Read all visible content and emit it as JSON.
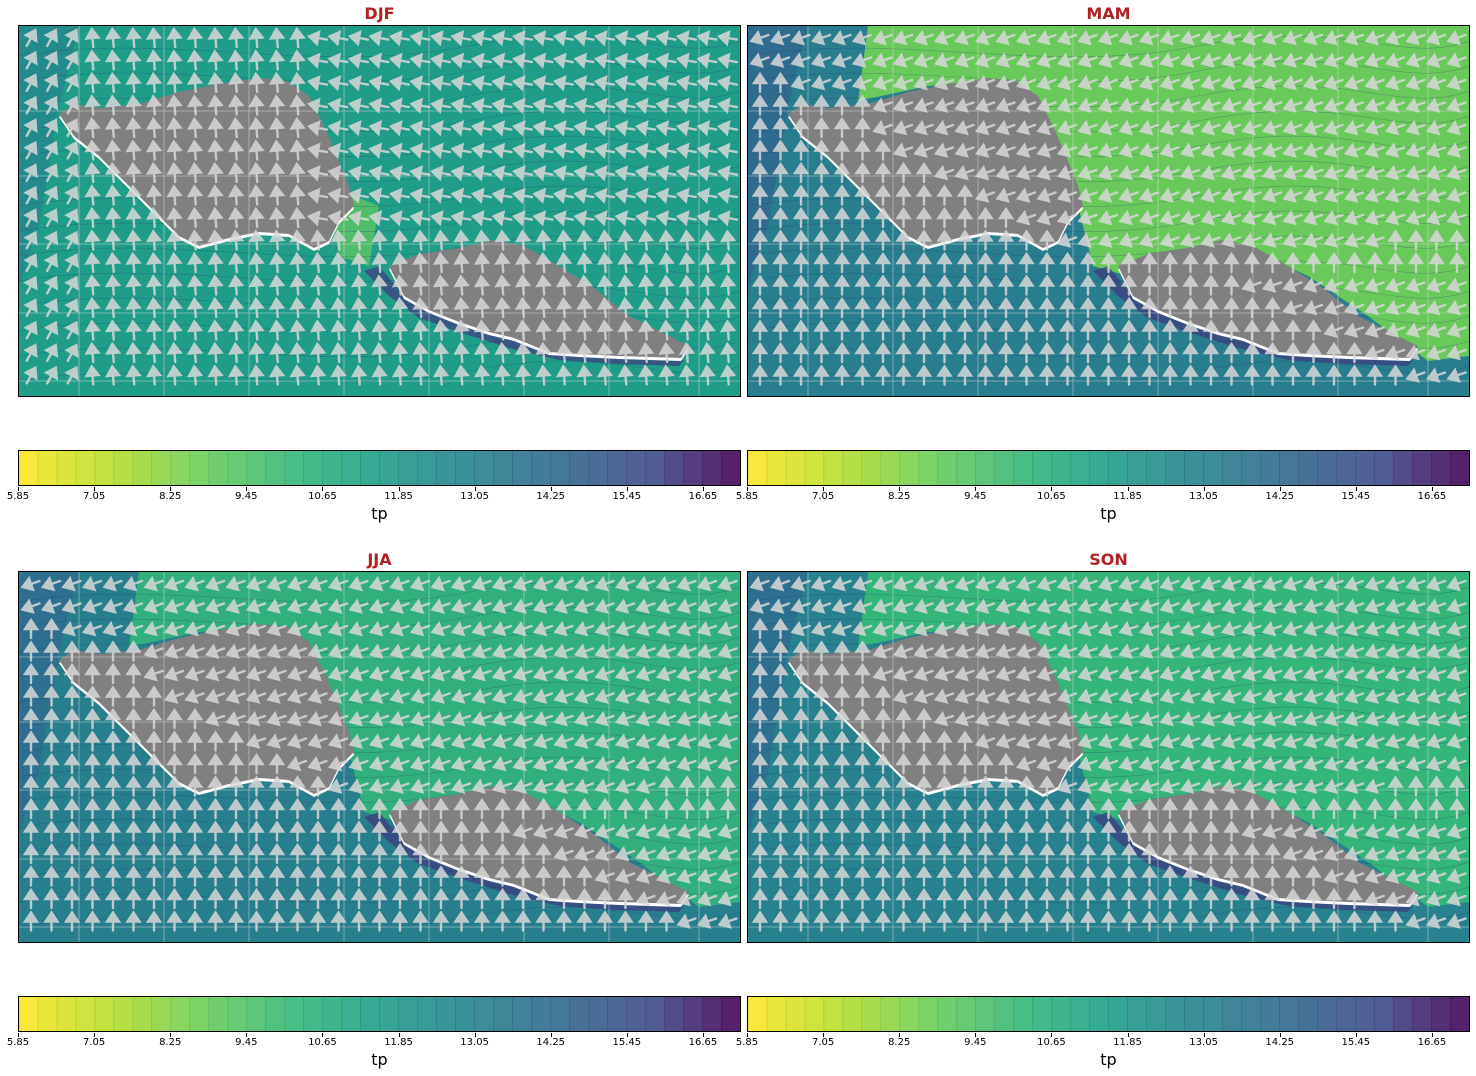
{
  "figure": {
    "panels": [
      {
        "title": "DJF",
        "scheme": "djf"
      },
      {
        "title": "MAM",
        "scheme": "mam"
      },
      {
        "title": "JJA",
        "scheme": "jja"
      },
      {
        "title": "SON",
        "scheme": "son"
      }
    ]
  },
  "chart_data": {
    "type": "heatmap",
    "variable": "tp",
    "colormap": "viridis_r",
    "colorbar": {
      "label": "tp",
      "range": [
        5.85,
        17.25
      ],
      "levels_step": 0.3,
      "ticks": [
        "5.85",
        "7.05",
        "8.25",
        "9.45",
        "10.65",
        "11.85",
        "13.05",
        "14.25",
        "15.45",
        "16.65"
      ]
    },
    "overlay": "direction arrows (white)",
    "land_color": "#808080",
    "grid": true,
    "panels": [
      "DJF",
      "MAM",
      "JJA",
      "SON"
    ]
  }
}
